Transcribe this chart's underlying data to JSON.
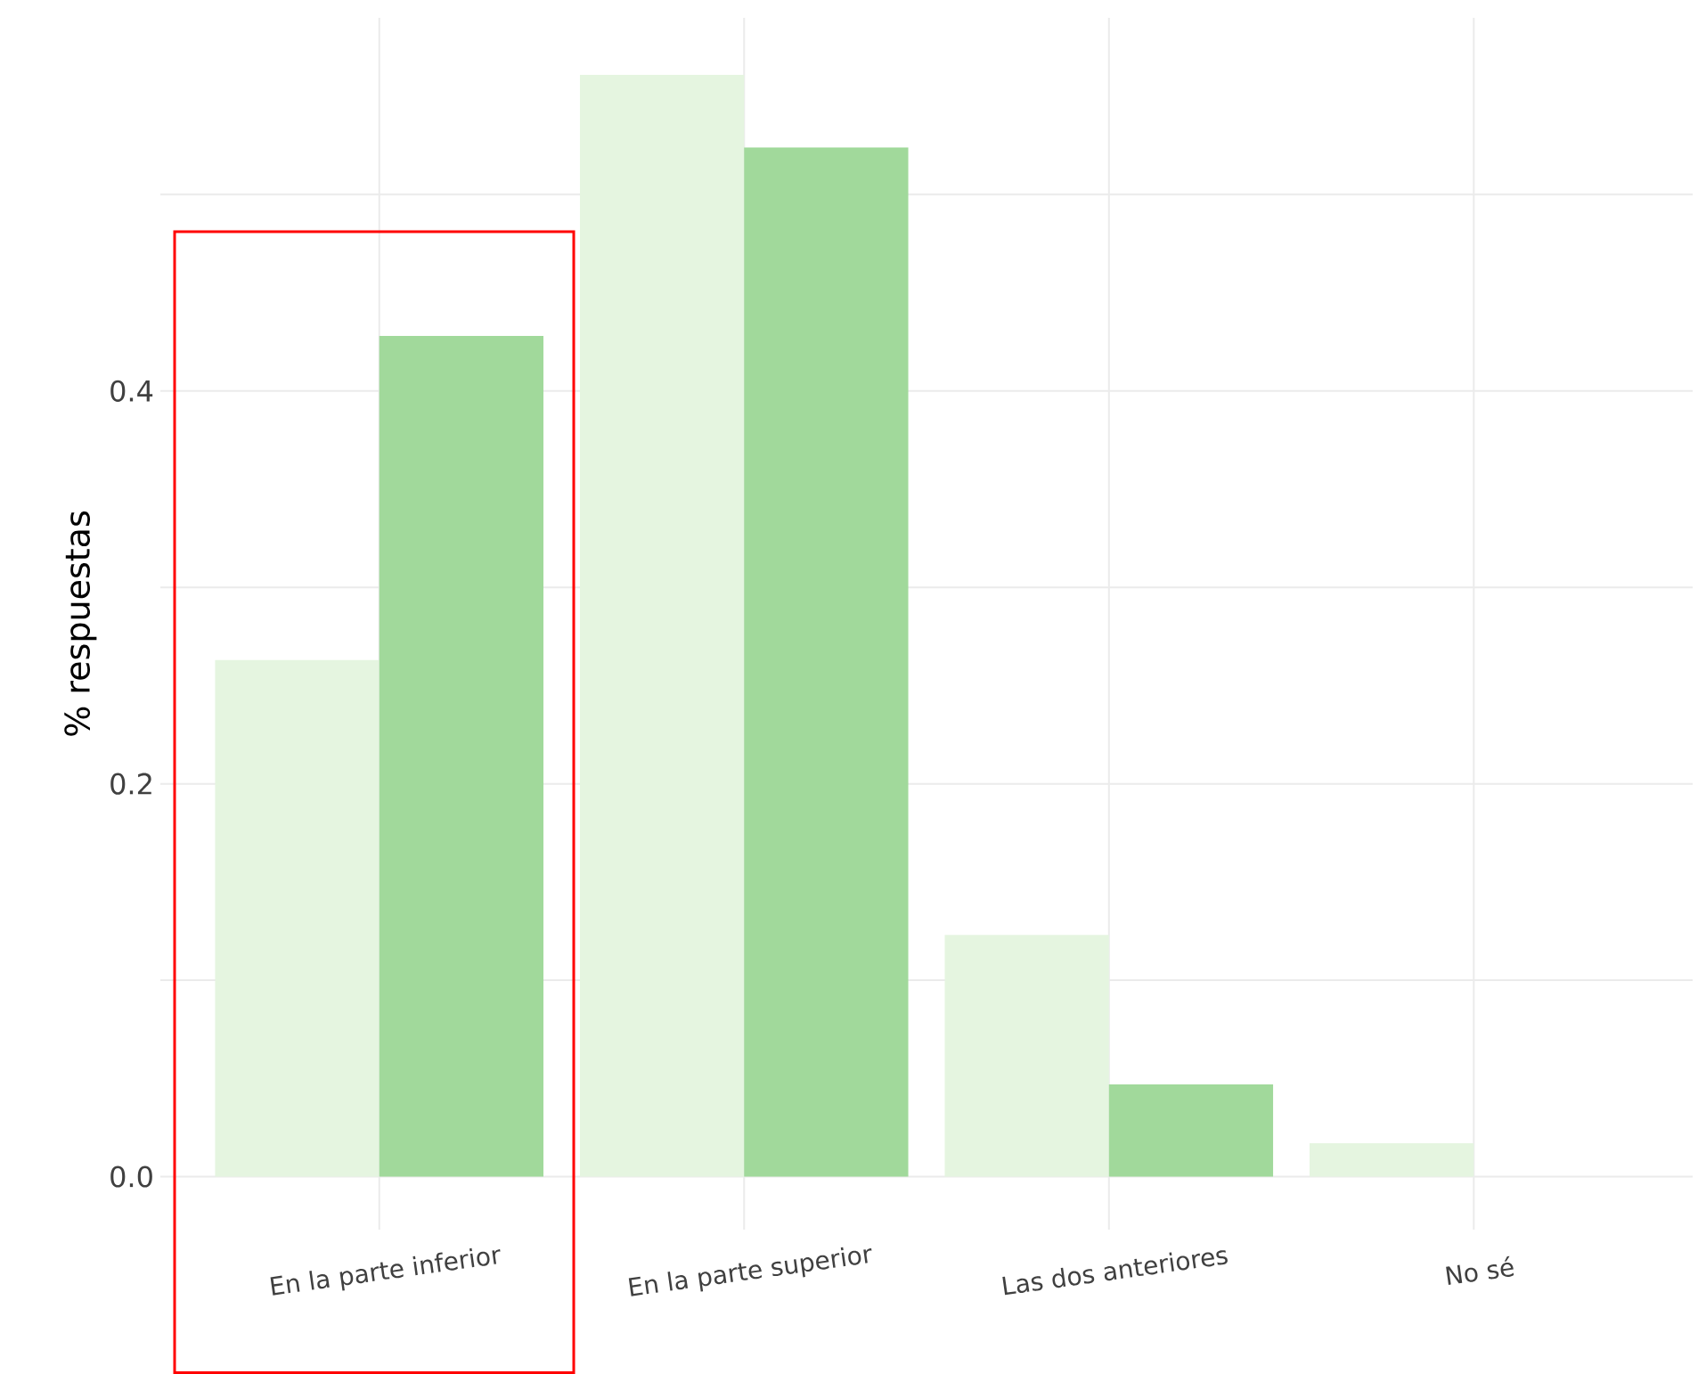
{
  "chart_data": {
    "type": "bar",
    "ylabel": "% respuestas",
    "categories": [
      "En la parte inferior",
      "En la parte superior",
      "Las dos anteriores",
      "No sé"
    ],
    "series": [
      {
        "color": "#e5f5e0",
        "values": [
          0.263,
          0.561,
          0.123,
          0.017
        ]
      },
      {
        "color": "#a1d99b",
        "values": [
          0.428,
          0.524,
          0.047,
          0
        ]
      }
    ],
    "ylim": [
      -0.027,
      0.59
    ],
    "yticks": [
      {
        "value": 0,
        "label": "0.0"
      },
      {
        "value": 0.1,
        "label": null
      },
      0.2,
      {
        "value": 0.3,
        "label": null
      },
      0.4,
      {
        "value": 0.5,
        "label": null
      }
    ],
    "grid": true
  }
}
